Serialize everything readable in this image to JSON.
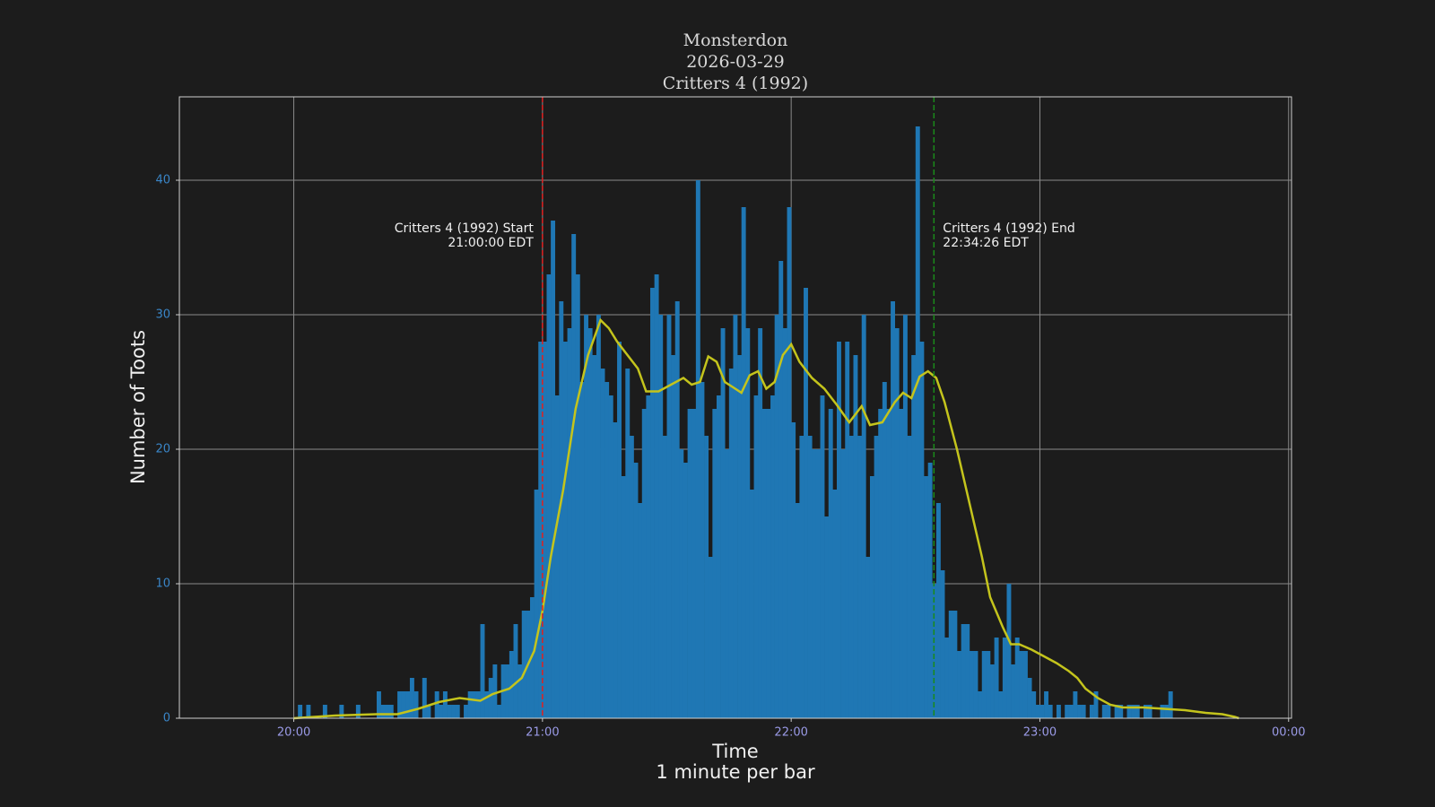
{
  "chart_data": {
    "type": "histogram",
    "title": [
      "Monsterdon",
      "2026-03-29",
      "Critters 4 (1992)"
    ],
    "xlabel": [
      "Time",
      "1 minute per bar"
    ],
    "ylabel": "Number of Toots",
    "color": "#1f77b4",
    "bins": [
      1200,
      1201,
      1202,
      1203,
      1204,
      1205,
      1206,
      1207,
      1208,
      1209,
      1210,
      1211,
      1212,
      1213,
      1214,
      1215,
      1216,
      1217,
      1218,
      1219,
      1220,
      1221,
      1222,
      1223,
      1224,
      1225,
      1226,
      1227,
      1228,
      1229,
      1230,
      1231,
      1232,
      1233,
      1234,
      1235,
      1236,
      1237,
      1238,
      1239,
      1240,
      1241,
      1242,
      1243,
      1244,
      1245,
      1246,
      1247,
      1248,
      1249,
      1250,
      1251,
      1252,
      1253,
      1254,
      1255,
      1256,
      1257,
      1258,
      1259,
      1260,
      1261,
      1262,
      1263,
      1264,
      1265,
      1266,
      1267,
      1268,
      1269,
      1270,
      1271,
      1272,
      1273,
      1274,
      1275,
      1276,
      1277,
      1278,
      1279,
      1280,
      1281,
      1282,
      1283,
      1284,
      1285,
      1286,
      1287,
      1288,
      1289,
      1290,
      1291,
      1292,
      1293,
      1294,
      1295,
      1296,
      1297,
      1298,
      1299,
      1300,
      1301,
      1302,
      1303,
      1304,
      1305,
      1306,
      1307,
      1308,
      1309,
      1310,
      1311,
      1312,
      1313,
      1314,
      1315,
      1316,
      1317,
      1318,
      1319,
      1320,
      1321,
      1322,
      1323,
      1324,
      1325,
      1326,
      1327,
      1328,
      1329,
      1330,
      1331,
      1332,
      1333,
      1334,
      1335,
      1336,
      1337,
      1338,
      1339,
      1340,
      1341,
      1342,
      1343,
      1344,
      1345,
      1346,
      1347,
      1348,
      1349,
      1350,
      1351,
      1352,
      1353,
      1354,
      1355,
      1356,
      1357,
      1358,
      1359,
      1360,
      1361,
      1362,
      1363,
      1364,
      1365,
      1366,
      1367,
      1368,
      1369,
      1370,
      1371,
      1372,
      1373,
      1374,
      1375,
      1376,
      1377,
      1378,
      1379,
      1380,
      1381,
      1382,
      1383,
      1384,
      1385,
      1386,
      1387,
      1388,
      1389,
      1390,
      1391,
      1392,
      1393,
      1394,
      1395,
      1396,
      1397,
      1398,
      1399,
      1400,
      1401,
      1402,
      1403,
      1404,
      1405,
      1406,
      1407,
      1408,
      1409,
      1410,
      1411,
      1412,
      1413,
      1414,
      1415
    ],
    "counts": [
      0,
      1,
      0,
      1,
      0,
      0,
      0,
      1,
      0,
      0,
      0,
      1,
      0,
      0,
      0,
      1,
      0,
      0,
      0,
      0,
      2,
      1,
      1,
      1,
      0,
      2,
      2,
      2,
      3,
      2,
      0,
      3,
      1,
      0,
      2,
      1,
      2,
      1,
      1,
      1,
      0,
      1,
      2,
      2,
      2,
      7,
      2,
      3,
      4,
      1,
      4,
      4,
      5,
      7,
      4,
      8,
      8,
      9,
      17,
      28,
      28,
      33,
      37,
      24,
      31,
      28,
      29,
      36,
      33,
      25,
      30,
      29,
      27,
      30,
      26,
      25,
      24,
      22,
      28,
      18,
      26,
      21,
      19,
      16,
      23,
      24,
      32,
      33,
      30,
      21,
      30,
      27,
      31,
      20,
      19,
      23,
      23,
      40,
      25,
      21,
      12,
      23,
      24,
      29,
      20,
      26,
      30,
      27,
      38,
      29,
      17,
      24,
      29,
      23,
      23,
      24,
      30,
      34,
      29,
      38,
      22,
      16,
      21,
      32,
      21,
      20,
      20,
      24,
      15,
      23,
      17,
      28,
      20,
      28,
      21,
      27,
      21,
      30,
      12,
      18,
      21,
      23,
      25,
      23,
      31,
      29,
      23,
      30,
      21,
      27,
      44,
      28,
      18,
      19,
      10,
      16,
      11,
      6,
      8,
      8,
      5,
      7,
      7,
      5,
      5,
      2,
      5,
      5,
      4,
      6,
      2,
      6,
      10,
      4,
      6,
      5,
      5,
      3,
      2,
      1,
      1,
      2,
      1,
      0,
      1,
      0,
      1,
      1,
      2,
      1,
      1,
      0,
      1,
      2,
      0,
      1,
      1,
      0,
      1,
      1,
      0,
      1,
      1,
      1,
      0,
      1,
      1,
      0,
      0,
      1,
      1,
      2,
      0,
      0,
      0
    ],
    "line": {
      "color": "#c4c41c",
      "x": [
        1200,
        1210,
        1220,
        1225,
        1230,
        1235,
        1240,
        1245,
        1248,
        1252,
        1255,
        1258,
        1260,
        1262,
        1265,
        1268,
        1271,
        1274,
        1276,
        1278,
        1280,
        1283,
        1285,
        1288,
        1291,
        1294,
        1296,
        1298,
        1300,
        1302,
        1304,
        1306,
        1308,
        1310,
        1312,
        1314,
        1316,
        1318,
        1320,
        1322,
        1325,
        1328,
        1331,
        1334,
        1337,
        1339,
        1342,
        1345,
        1347,
        1349,
        1351,
        1353,
        1355,
        1357,
        1360,
        1363,
        1366,
        1368,
        1371,
        1373,
        1375,
        1378,
        1381,
        1384,
        1387,
        1389,
        1391,
        1394,
        1397,
        1400,
        1405,
        1410,
        1415,
        1420,
        1424,
        1427,
        1428
      ],
      "values": [
        0,
        0.2,
        0.3,
        0.3,
        0.7,
        1.2,
        1.5,
        1.3,
        1.8,
        2.2,
        3,
        5,
        8,
        12,
        17,
        23,
        27,
        29.6,
        29,
        28,
        27.2,
        26,
        24.3,
        24.3,
        24.8,
        25.3,
        24.8,
        25,
        26.9,
        26.5,
        25,
        24.6,
        24.2,
        25.5,
        25.8,
        24.5,
        25,
        27,
        27.8,
        26.5,
        25.3,
        24.5,
        23.3,
        22,
        23.2,
        21.8,
        22,
        23.5,
        24.2,
        23.8,
        25.4,
        25.8,
        25.3,
        23.5,
        20,
        16,
        12,
        9,
        6.8,
        5.5,
        5.5,
        5.1,
        4.6,
        4.1,
        3.5,
        3,
        2.2,
        1.5,
        1,
        0.8,
        0.8,
        0.7,
        0.6,
        0.4,
        0.3,
        0.1,
        0
      ]
    },
    "vlines": [
      {
        "x": 1260,
        "color": "#e02020",
        "align": "right",
        "text": [
          "Critters 4 (1992) Start",
          "21:00:00 EDT"
        ]
      },
      {
        "x": 1354.433,
        "color": "#1a8a1a",
        "align": "left",
        "text": [
          "Critters 4 (1992) End",
          "22:34:26 EDT"
        ]
      }
    ],
    "xlim": [
      1172.4,
      1440.7
    ],
    "ylim": [
      0,
      46.2
    ],
    "xticks": [
      {
        "value": 1200,
        "label": "20:00"
      },
      {
        "value": 1260,
        "label": "21:00"
      },
      {
        "value": 1320,
        "label": "22:00"
      },
      {
        "value": 1380,
        "label": "23:00"
      },
      {
        "value": 1440,
        "label": "00:00"
      }
    ],
    "yticks": [
      0,
      10,
      20,
      30,
      40
    ],
    "grid": true
  }
}
